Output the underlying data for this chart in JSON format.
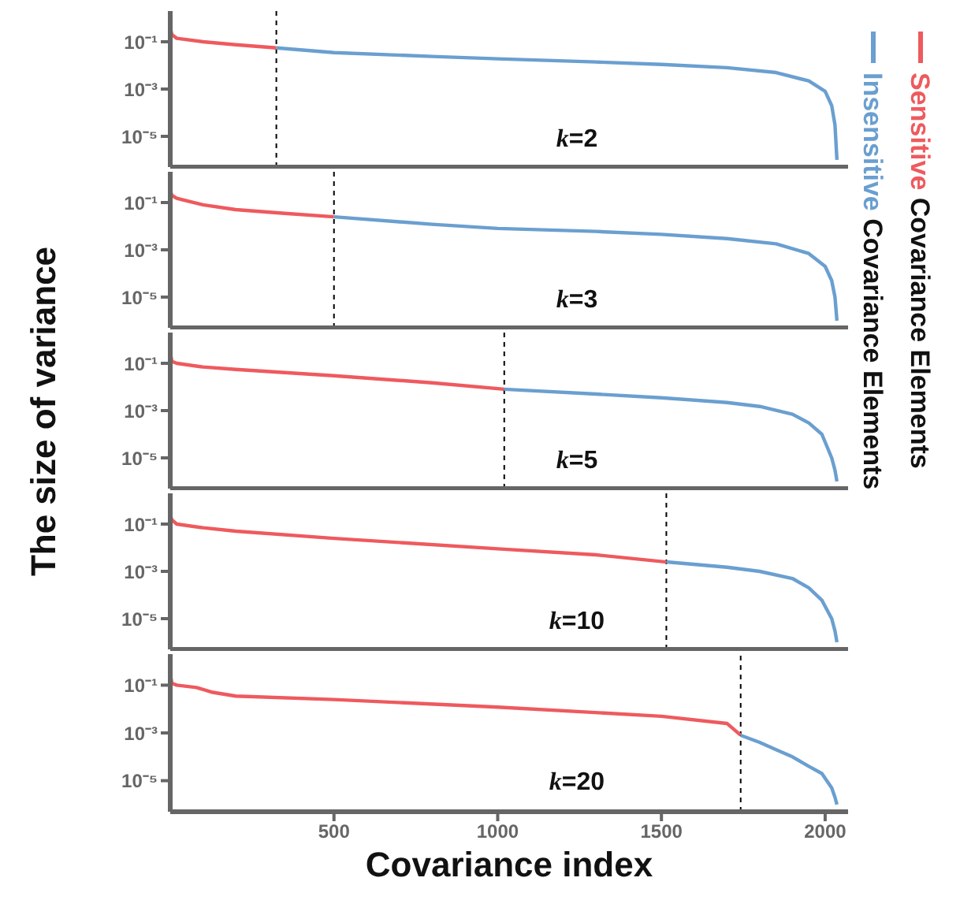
{
  "chart_data": [
    {
      "type": "line",
      "xlim": [
        0,
        2070
      ],
      "ylim": [
        5e-07,
        2
      ],
      "log": "y",
      "yticks": [
        {
          "value": 0.1,
          "label": "10⁻¹"
        },
        {
          "value": 0.001,
          "label": "10⁻³"
        },
        {
          "value": 1e-05,
          "label": "10⁻⁵"
        }
      ],
      "tick_labels": "y",
      "legend": "right",
      "line_style": "solid",
      "marker": "none",
      "annotations": [
        "k=2"
      ],
      "ref_lines": [
        {
          "axis": "x",
          "value": 324,
          "color": "#000000",
          "line_style": "dashed"
        }
      ],
      "series": [
        {
          "name": "Sensitive Covariance Elements",
          "color": "#ee5a5e",
          "x": [
            1,
            5,
            20,
            100,
            200,
            324
          ],
          "values": [
            0.35,
            0.2,
            0.14,
            0.1,
            0.075,
            0.055
          ]
        },
        {
          "name": "Insensitive Covariance Elements",
          "color": "#6a9fd0",
          "x": [
            324,
            500,
            800,
            1000,
            1300,
            1500,
            1700,
            1850,
            1950,
            2000,
            2020,
            2030,
            2036
          ],
          "values": [
            0.055,
            0.035,
            0.024,
            0.019,
            0.014,
            0.011,
            0.008,
            0.005,
            0.0022,
            0.0008,
            0.0002,
            3e-05,
            1e-06
          ]
        }
      ]
    },
    {
      "type": "line",
      "xlim": [
        0,
        2070
      ],
      "ylim": [
        5e-07,
        2
      ],
      "log": "y",
      "yticks": [
        {
          "value": 0.1,
          "label": "10⁻¹"
        },
        {
          "value": 0.001,
          "label": "10⁻³"
        },
        {
          "value": 1e-05,
          "label": "10⁻⁵"
        }
      ],
      "tick_labels": "y",
      "line_style": "solid",
      "marker": "none",
      "annotations": [
        "k=3"
      ],
      "ref_lines": [
        {
          "axis": "x",
          "value": 500,
          "color": "#000000",
          "line_style": "dashed"
        }
      ],
      "series": [
        {
          "color": "#ee5a5e",
          "x": [
            1,
            5,
            20,
            100,
            200,
            350,
            500
          ],
          "values": [
            0.3,
            0.2,
            0.15,
            0.08,
            0.05,
            0.035,
            0.025
          ]
        },
        {
          "color": "#6a9fd0",
          "x": [
            500,
            800,
            1000,
            1300,
            1500,
            1700,
            1850,
            1950,
            2000,
            2020,
            2030,
            2036
          ],
          "values": [
            0.025,
            0.012,
            0.008,
            0.006,
            0.0045,
            0.003,
            0.0018,
            0.0007,
            0.0002,
            5e-05,
            1e-05,
            1e-06
          ]
        }
      ]
    },
    {
      "type": "line",
      "xlim": [
        0,
        2070
      ],
      "ylim": [
        5e-07,
        2
      ],
      "log": "y",
      "yticks": [
        {
          "value": 0.1,
          "label": "10⁻¹"
        },
        {
          "value": 0.001,
          "label": "10⁻³"
        },
        {
          "value": 1e-05,
          "label": "10⁻⁵"
        }
      ],
      "tick_labels": "y",
      "line_style": "solid",
      "marker": "none",
      "ylabel": "The size of variance",
      "annotations": [
        "k=5"
      ],
      "ref_lines": [
        {
          "axis": "x",
          "value": 1020,
          "color": "#000000",
          "line_style": "dashed"
        }
      ],
      "series": [
        {
          "color": "#ee5a5e",
          "x": [
            1,
            5,
            20,
            100,
            200,
            500,
            800,
            1020
          ],
          "values": [
            0.25,
            0.12,
            0.1,
            0.07,
            0.055,
            0.03,
            0.015,
            0.008
          ]
        },
        {
          "color": "#6a9fd0",
          "x": [
            1020,
            1300,
            1500,
            1700,
            1800,
            1900,
            1950,
            1990,
            2020,
            2030,
            2036
          ],
          "values": [
            0.008,
            0.005,
            0.0035,
            0.0022,
            0.0015,
            0.0007,
            0.0003,
            0.0001,
            1e-05,
            3e-06,
            1e-06
          ]
        }
      ]
    },
    {
      "type": "line",
      "xlim": [
        0,
        2070
      ],
      "ylim": [
        5e-07,
        2
      ],
      "log": "y",
      "yticks": [
        {
          "value": 0.1,
          "label": "10⁻¹"
        },
        {
          "value": 0.001,
          "label": "10⁻³"
        },
        {
          "value": 1e-05,
          "label": "10⁻⁵"
        }
      ],
      "tick_labels": "y",
      "line_style": "solid",
      "marker": "none",
      "annotations": [
        "k=10"
      ],
      "ref_lines": [
        {
          "axis": "x",
          "value": 1515,
          "color": "#000000",
          "line_style": "dashed"
        }
      ],
      "series": [
        {
          "color": "#ee5a5e",
          "x": [
            1,
            5,
            20,
            100,
            200,
            500,
            1000,
            1300,
            1515
          ],
          "values": [
            0.22,
            0.15,
            0.1,
            0.07,
            0.05,
            0.025,
            0.009,
            0.005,
            0.0025
          ]
        },
        {
          "color": "#6a9fd0",
          "x": [
            1515,
            1700,
            1800,
            1900,
            1950,
            1990,
            2020,
            2030,
            2036
          ],
          "values": [
            0.0025,
            0.0015,
            0.001,
            0.0005,
            0.0002,
            6e-05,
            1e-05,
            3e-06,
            1e-06
          ]
        }
      ]
    },
    {
      "type": "line",
      "xlim": [
        0,
        2070
      ],
      "ylim": [
        5e-07,
        2
      ],
      "log": "y",
      "xticks": [
        500,
        1000,
        1500,
        2000
      ],
      "yticks": [
        {
          "value": 0.1,
          "label": "10⁻¹"
        },
        {
          "value": 0.001,
          "label": "10⁻³"
        },
        {
          "value": 1e-05,
          "label": "10⁻⁵"
        }
      ],
      "line_style": "solid",
      "marker": "none",
      "xlabel": "Covariance index",
      "annotations": [
        "k=20"
      ],
      "ref_lines": [
        {
          "axis": "x",
          "value": 1742,
          "color": "#000000",
          "line_style": "dashed"
        }
      ],
      "series": [
        {
          "color": "#ee5a5e",
          "x": [
            1,
            5,
            20,
            80,
            130,
            200,
            500,
            1000,
            1500,
            1700,
            1742
          ],
          "values": [
            0.25,
            0.12,
            0.1,
            0.08,
            0.05,
            0.035,
            0.025,
            0.012,
            0.005,
            0.0025,
            0.0008
          ]
        },
        {
          "color": "#6a9fd0",
          "x": [
            1742,
            1800,
            1850,
            1900,
            1950,
            1990,
            2020,
            2030,
            2036
          ],
          "values": [
            0.0008,
            0.0004,
            0.0002,
            0.0001,
            4e-05,
            2e-05,
            5e-06,
            2e-06,
            1e-06
          ]
        }
      ]
    }
  ]
}
